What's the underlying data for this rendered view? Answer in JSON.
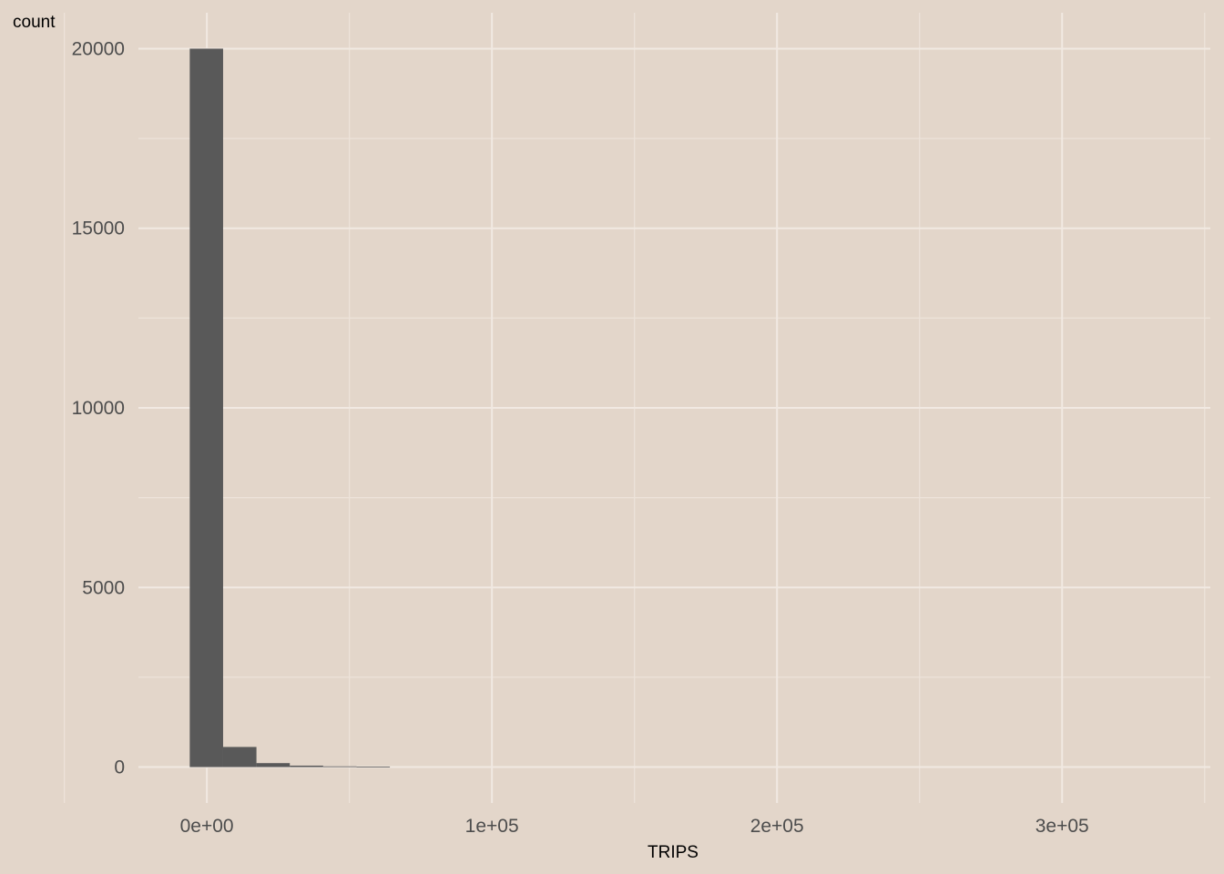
{
  "chart_data": {
    "type": "bar",
    "subtype": "histogram",
    "xlabel": "TRIPS",
    "ylabel": "count",
    "xlim": [
      -24000,
      352000
    ],
    "ylim": [
      -1000,
      21000
    ],
    "x_ticks": [
      {
        "value": 0,
        "label": "0e+00"
      },
      {
        "value": 100000,
        "label": "1e+05"
      },
      {
        "value": 200000,
        "label": "2e+05"
      },
      {
        "value": 300000,
        "label": "3e+05"
      }
    ],
    "x_minor_ticks": [
      -50000,
      50000,
      150000,
      250000,
      350000
    ],
    "y_ticks": [
      {
        "value": 0,
        "label": "0"
      },
      {
        "value": 5000,
        "label": "5000"
      },
      {
        "value": 10000,
        "label": "10000"
      },
      {
        "value": 15000,
        "label": "15000"
      },
      {
        "value": 20000,
        "label": "20000"
      }
    ],
    "y_minor_ticks": [
      2500,
      7500,
      12500,
      17500
    ],
    "bins": [
      {
        "x0": -6000,
        "x1": 5700,
        "count": 20000
      },
      {
        "x0": 5700,
        "x1": 17400,
        "count": 560
      },
      {
        "x0": 17400,
        "x1": 29100,
        "count": 110
      },
      {
        "x0": 29100,
        "x1": 40800,
        "count": 40
      },
      {
        "x0": 40800,
        "x1": 52500,
        "count": 20
      },
      {
        "x0": 52500,
        "x1": 64200,
        "count": 10
      }
    ],
    "grid": true,
    "legend": "none",
    "colors": {
      "background": "#E3D6CA",
      "bar": "#595959",
      "grid": "#F1E9E2",
      "tick_text": "#4D4D4D"
    }
  }
}
